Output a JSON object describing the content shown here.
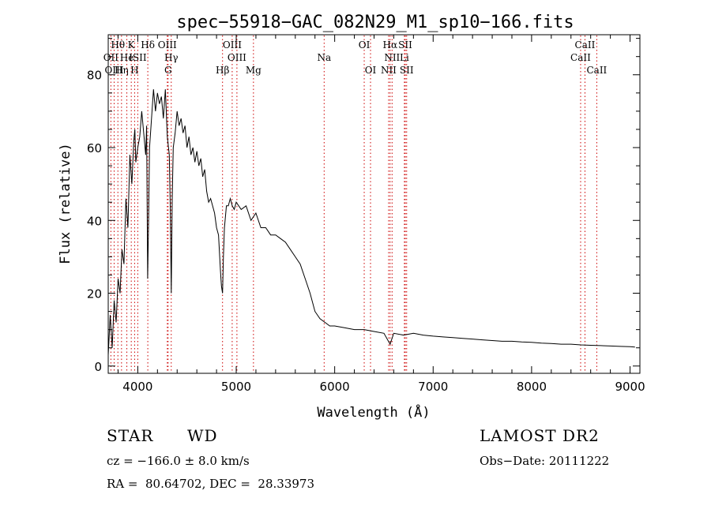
{
  "chart_data": {
    "type": "line",
    "title": "spec−55918−GAC_082N29_M1_sp10−166.fits",
    "xlabel": "Wavelength (Å)",
    "ylabel": "Flux (relative)",
    "xlim": [
      3700,
      9100
    ],
    "ylim": [
      -2,
      91
    ],
    "xticks": [
      4000,
      5000,
      6000,
      7000,
      8000,
      9000
    ],
    "yticks": [
      0,
      20,
      40,
      60,
      80
    ],
    "grid": false,
    "series": [
      {
        "x": [
          3700,
          3720,
          3740,
          3760,
          3780,
          3800,
          3820,
          3840,
          3860,
          3880,
          3900,
          3920,
          3940,
          3960,
          3970,
          3980,
          4000,
          4020,
          4040,
          4060,
          4080,
          4090,
          4100,
          4110,
          4120,
          4140,
          4160,
          4180,
          4200,
          4220,
          4240,
          4260,
          4280,
          4300,
          4320,
          4330,
          4340,
          4350,
          4360,
          4380,
          4400,
          4420,
          4440,
          4460,
          4480,
          4500,
          4520,
          4540,
          4560,
          4580,
          4600,
          4620,
          4640,
          4660,
          4680,
          4700,
          4720,
          4740,
          4760,
          4780,
          4800,
          4820,
          4840,
          4850,
          4861,
          4870,
          4880,
          4900,
          4920,
          4940,
          4960,
          4980,
          5000,
          5050,
          5100,
          5150,
          5200,
          5250,
          5300,
          5350,
          5400,
          5450,
          5500,
          5550,
          5600,
          5650,
          5700,
          5750,
          5800,
          5850,
          5900,
          5950,
          6000,
          6100,
          6200,
          6300,
          6400,
          6500,
          6563,
          6600,
          6700,
          6800,
          6900,
          7000,
          7100,
          7200,
          7300,
          7400,
          7500,
          7600,
          7700,
          7800,
          7900,
          8000,
          8100,
          8200,
          8300,
          8400,
          8500,
          8600,
          8700,
          8800,
          8900,
          9000,
          9050
        ],
        "y": [
          3,
          14,
          5,
          18,
          12,
          24,
          20,
          32,
          28,
          46,
          38,
          58,
          50,
          62,
          65,
          56,
          60,
          63,
          70,
          64,
          58,
          66,
          24,
          40,
          60,
          68,
          76,
          70,
          75,
          72,
          74,
          68,
          76,
          63,
          58,
          44,
          20,
          46,
          60,
          64,
          70,
          66,
          68,
          64,
          66,
          60,
          63,
          58,
          60,
          56,
          59,
          55,
          57,
          52,
          54,
          48,
          45,
          46,
          44,
          42,
          38,
          36,
          26,
          22,
          20,
          30,
          38,
          44,
          44,
          46,
          44,
          43,
          45,
          43,
          44,
          40,
          42,
          38,
          38,
          36,
          36,
          35,
          34,
          32,
          30,
          28,
          24,
          20,
          15,
          13,
          12,
          11,
          11,
          10.5,
          10,
          10,
          9.5,
          9,
          6,
          9,
          8.5,
          9,
          8.5,
          8.2,
          8,
          7.8,
          7.6,
          7.4,
          7.2,
          7,
          6.8,
          6.8,
          6.6,
          6.5,
          6.3,
          6.2,
          6,
          6,
          5.8,
          5.7,
          5.6,
          5.5,
          5.4,
          5.3,
          5.2
        ]
      }
    ],
    "lines": [
      {
        "label": "Hθ",
        "x": 3798,
        "row": 0
      },
      {
        "label": "OII",
        "x": 3727,
        "row": 1
      },
      {
        "label": "OIII",
        "x": 3760,
        "row": 2
      },
      {
        "label": "Hη",
        "x": 3835,
        "row": 2
      },
      {
        "label": "He",
        "x": 3889,
        "row": 1
      },
      {
        "label": "K",
        "x": 3934,
        "row": 0
      },
      {
        "label": "H",
        "x": 3968,
        "row": 2
      },
      {
        "label": "ISII",
        "x": 4000,
        "row": 1
      },
      {
        "label": "Hδ",
        "x": 4102,
        "row": 0
      },
      {
        "label": "OIII",
        "x": 4300,
        "row": 0
      },
      {
        "label": "Hγ",
        "x": 4340,
        "row": 1
      },
      {
        "label": "G",
        "x": 4308,
        "row": 2
      },
      {
        "label": "Hβ",
        "x": 4861,
        "row": 2
      },
      {
        "label": "OIII",
        "x": 4959,
        "row": 0
      },
      {
        "label": "OIII",
        "x": 5007,
        "row": 1
      },
      {
        "label": "Mg",
        "x": 5175,
        "row": 2
      },
      {
        "label": "Na",
        "x": 5893,
        "row": 1
      },
      {
        "label": "OI",
        "x": 6300,
        "row": 0
      },
      {
        "label": "OI",
        "x": 6364,
        "row": 2
      },
      {
        "label": "Hα",
        "x": 6563,
        "row": 0
      },
      {
        "label": "NII",
        "x": 6583,
        "row": 1
      },
      {
        "label": "NII",
        "x": 6548,
        "row": 2
      },
      {
        "label": "SII",
        "x": 6717,
        "row": 0
      },
      {
        "label": "SII",
        "x": 6731,
        "row": 2
      },
      {
        "label": "Li",
        "x": 6708,
        "row": 1
      },
      {
        "label": "CaII",
        "x": 8542,
        "row": 0
      },
      {
        "label": "CaII",
        "x": 8498,
        "row": 1
      },
      {
        "label": "CaII",
        "x": 8662,
        "row": 2
      }
    ]
  },
  "info": {
    "class": "STAR",
    "subclass": "WD",
    "survey": "LAMOST DR2",
    "cz": "cz = −166.0 ± 8.0 km/s",
    "obs_date": "Obs−Date: 20111222",
    "coords": "RA =  80.64702, DEC =  28.33973"
  }
}
